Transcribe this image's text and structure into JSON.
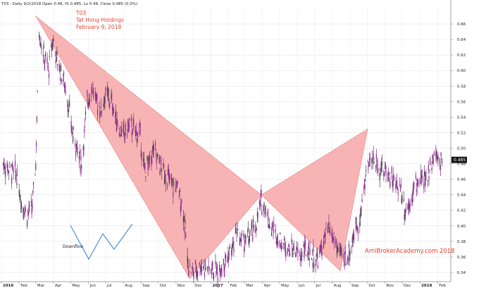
{
  "header": {
    "info": "T03 - Daily 9/2/2018 Open 0.48, Hi 0.485, Lo 0.48, Close 0.485 (0.0%)"
  },
  "annotation": {
    "ticker": "T03",
    "company": "Tat Hong Holdings",
    "date": "February 9, 2018"
  },
  "watermark": "AmiBrokerAcademy.com  2018",
  "inset": {
    "label": "Downflow",
    "line_color": "#4a8fd6"
  },
  "colors": {
    "candle_main": "#8a2f8e",
    "candle_dark": "#444444",
    "pattern_fill": "#f7a7a7",
    "pattern_stroke": "#c44040",
    "axis": "#999999",
    "last_price_box": "#111111"
  },
  "chart_data": {
    "type": "line",
    "title": "T03 - Daily 9/2/2018 Open 0.48, Hi 0.485, Lo 0.48, Close 0.485 (0.0%)",
    "xlabel": "",
    "ylabel": "",
    "ylim": [
      0.33,
      0.68
    ],
    "y_ticks": [
      0.34,
      0.36,
      0.38,
      0.4,
      0.42,
      0.44,
      0.46,
      0.48,
      0.5,
      0.52,
      0.54,
      0.56,
      0.58,
      0.6,
      0.62,
      0.64,
      0.66
    ],
    "x_tick_labels": [
      {
        "label": "2016",
        "bold": true
      },
      {
        "label": "Feb"
      },
      {
        "label": "Mar"
      },
      {
        "label": "Apr"
      },
      {
        "label": "May"
      },
      {
        "label": "Jun"
      },
      {
        "label": "Jul"
      },
      {
        "label": "Aug"
      },
      {
        "label": "Sep"
      },
      {
        "label": "Oct"
      },
      {
        "label": "Nov"
      },
      {
        "label": "Dec"
      },
      {
        "label": "2017",
        "bold": true
      },
      {
        "label": "Feb"
      },
      {
        "label": "Mar"
      },
      {
        "label": "Apr"
      },
      {
        "label": "May"
      },
      {
        "label": "Jun"
      },
      {
        "label": "Jul"
      },
      {
        "label": "Aug"
      },
      {
        "label": "Sep"
      },
      {
        "label": "Oct"
      },
      {
        "label": "Nov"
      },
      {
        "label": "Dec"
      },
      {
        "label": "2018",
        "bold": true
      },
      {
        "label": "Feb"
      }
    ],
    "last_price": 0.485,
    "last_price_label": "0.485",
    "pattern": {
      "name": "Downflow",
      "points": [
        {
          "date": "2016-03-01",
          "price": 0.67
        },
        {
          "date": "2016-11-25",
          "price": 0.332
        },
        {
          "date": "2017-03-30",
          "price": 0.44
        },
        {
          "date": "2017-08-15",
          "price": 0.342
        },
        {
          "date": "2017-10-02",
          "price": 0.525
        }
      ]
    },
    "series": [
      {
        "values_note": "approximate daily closes (sampled)",
        "x": [
          "2016-01-04",
          "2016-01-12",
          "2016-01-20",
          "2016-01-28",
          "2016-02-05",
          "2016-02-15",
          "2016-02-24",
          "2016-03-01",
          "2016-03-07",
          "2016-03-15",
          "2016-03-23",
          "2016-03-31",
          "2016-04-08",
          "2016-04-18",
          "2016-04-26",
          "2016-05-04",
          "2016-05-12",
          "2016-05-20",
          "2016-05-30",
          "2016-06-07",
          "2016-06-15",
          "2016-06-23",
          "2016-07-01",
          "2016-07-11",
          "2016-07-19",
          "2016-07-27",
          "2016-08-04",
          "2016-08-12",
          "2016-08-22",
          "2016-08-30",
          "2016-09-07",
          "2016-09-15",
          "2016-09-23",
          "2016-10-03",
          "2016-10-11",
          "2016-10-19",
          "2016-10-27",
          "2016-11-04",
          "2016-11-14",
          "2016-11-22",
          "2016-11-30",
          "2016-12-08",
          "2016-12-16",
          "2016-12-26",
          "2017-01-04",
          "2017-01-12",
          "2017-01-20",
          "2017-01-30",
          "2017-02-07",
          "2017-02-15",
          "2017-02-23",
          "2017-03-03",
          "2017-03-13",
          "2017-03-21",
          "2017-03-29",
          "2017-04-06",
          "2017-04-14",
          "2017-04-24",
          "2017-05-02",
          "2017-05-10",
          "2017-05-18",
          "2017-05-26",
          "2017-06-05",
          "2017-06-13",
          "2017-06-21",
          "2017-06-29",
          "2017-07-07",
          "2017-07-17",
          "2017-07-25",
          "2017-08-02",
          "2017-08-10",
          "2017-08-18",
          "2017-08-28",
          "2017-09-05",
          "2017-09-13",
          "2017-09-21",
          "2017-09-29",
          "2017-10-09",
          "2017-10-17",
          "2017-10-25",
          "2017-11-02",
          "2017-11-10",
          "2017-11-20",
          "2017-11-28",
          "2017-12-06",
          "2017-12-14",
          "2017-12-22",
          "2018-01-03",
          "2018-01-11",
          "2018-01-19",
          "2018-01-29",
          "2018-02-09"
        ],
        "values": [
          0.48,
          0.475,
          0.47,
          0.465,
          0.43,
          0.415,
          0.425,
          0.48,
          0.65,
          0.62,
          0.6,
          0.64,
          0.61,
          0.59,
          0.56,
          0.52,
          0.5,
          0.48,
          0.56,
          0.58,
          0.56,
          0.55,
          0.57,
          0.56,
          0.54,
          0.52,
          0.52,
          0.53,
          0.52,
          0.52,
          0.47,
          0.48,
          0.5,
          0.48,
          0.47,
          0.46,
          0.45,
          0.45,
          0.42,
          0.35,
          0.34,
          0.345,
          0.35,
          0.345,
          0.345,
          0.34,
          0.35,
          0.36,
          0.37,
          0.39,
          0.38,
          0.38,
          0.39,
          0.4,
          0.43,
          0.425,
          0.4,
          0.39,
          0.38,
          0.375,
          0.37,
          0.37,
          0.36,
          0.37,
          0.365,
          0.36,
          0.355,
          0.38,
          0.395,
          0.385,
          0.37,
          0.36,
          0.36,
          0.38,
          0.4,
          0.42,
          0.47,
          0.49,
          0.48,
          0.475,
          0.47,
          0.465,
          0.45,
          0.45,
          0.42,
          0.43,
          0.45,
          0.46,
          0.455,
          0.48,
          0.49,
          0.485
        ]
      }
    ]
  }
}
